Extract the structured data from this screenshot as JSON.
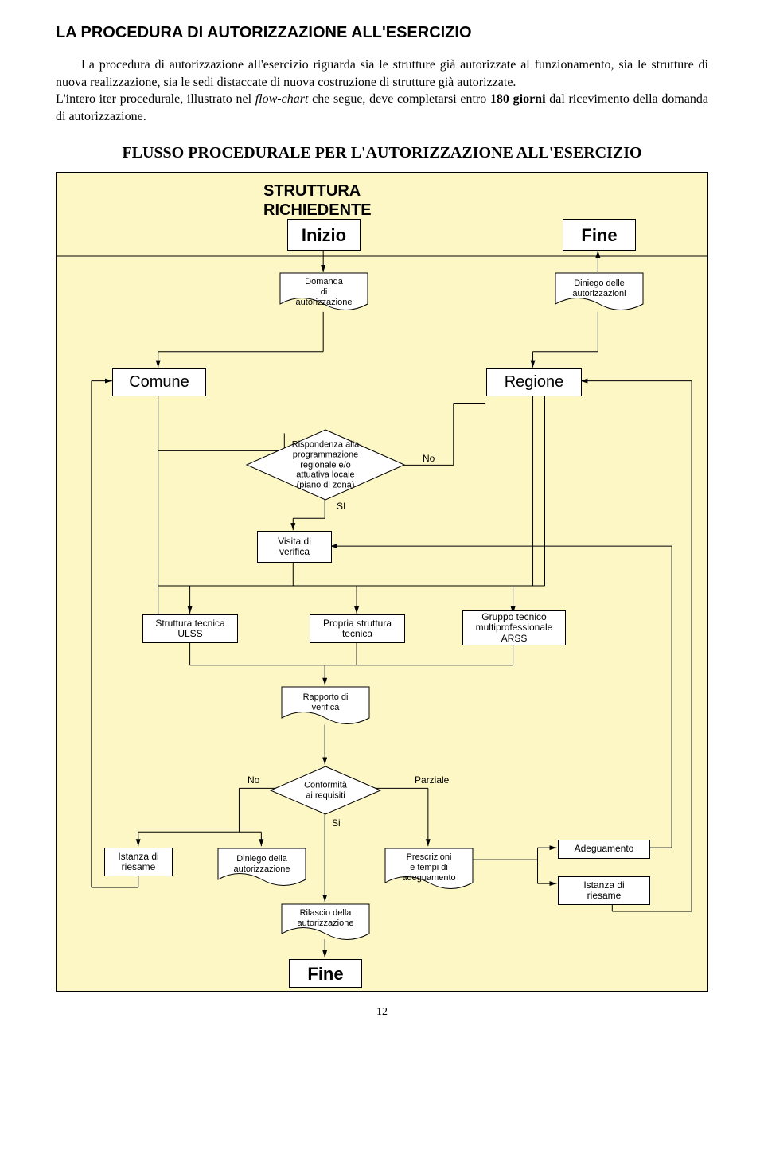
{
  "page_title": "LA PROCEDURA DI AUTORIZZAZIONE ALL'ESERCIZIO",
  "paragraph_html": "La procedura di autorizzazione all'esercizio riguarda sia le strutture già autorizzate al funzionamento, sia le strutture di nuova realizzazione, sia le sedi distaccate di nuova costruzione di strutture già autorizzate.<br>L'intero iter procedurale, illustrato nel <span class=\"italic\">flow-chart</span> che segue, deve completarsi entro <b>180 giorni</b> dal ricevimento della domanda di autorizzazione.",
  "flow_title": "FLUSSO PROCEDURALE PER L'AUTORIZZAZIONE ALL'ESERCIZIO",
  "labels": {
    "struttura": "STRUTTURA",
    "richiedente": "RICHIEDENTE",
    "inizio": "Inizio",
    "fine": "Fine",
    "comune": "Comune",
    "regione": "Regione",
    "domanda": "Domanda\ndi\nautorizzazione",
    "diniego_delle": "Diniego delle\nautorizzazioni",
    "rispondenza": "Rispondenza alla\nprogrammazione\nregionale e/o\nattuativa locale\n(piano di zona)",
    "no": "No",
    "si": "SI",
    "si2": "Si",
    "visita": "Visita di\nverifica",
    "strut_ulss": "Struttura tecnica\nULSS",
    "propria": "Propria struttura\ntecnica",
    "gruppo": "Gruppo tecnico\nmultiprofessionale\nARSS",
    "rapporto": "Rapporto di\nverifica",
    "conform": "Conformità\nai requisiti",
    "parziale": "Parziale",
    "istanza": "Istanza di\nriesame",
    "diniego_della": "Diniego della\nautorizzazione",
    "prescrizioni": "Prescrizioni\ne tempi di\nadeguamento",
    "adeguamento": "Adeguamento",
    "rilascio": "Rilascio della\nautorizzazione"
  },
  "colors": {
    "bg": "#fcf7c5",
    "white": "#ffffff",
    "black": "#000000"
  },
  "page_number": "12"
}
